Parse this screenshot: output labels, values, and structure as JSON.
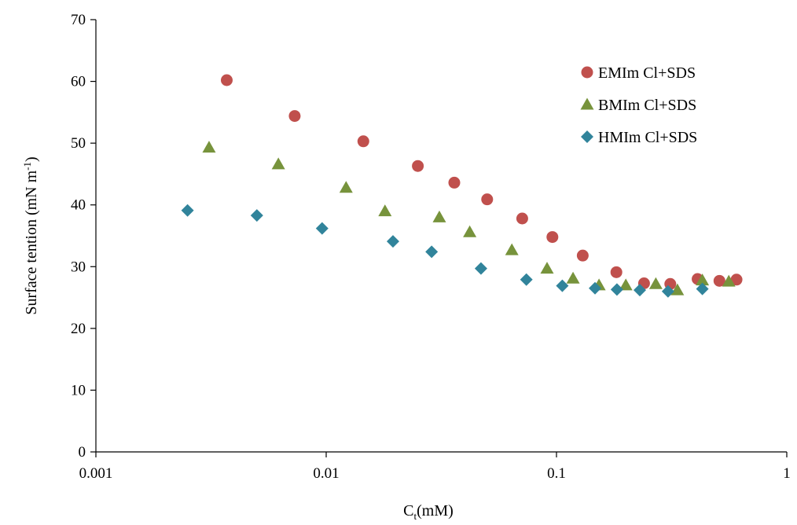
{
  "chart_data": {
    "type": "scatter",
    "title": "",
    "xlabel": "(mM)",
    "xlabel_prefix": "C",
    "xlabel_subscript": "t",
    "ylabel": "Surface tention (mN m",
    "ylabel_superscript": "-1",
    "ylabel_suffix": ")",
    "xscale": "log",
    "xlim": [
      0.001,
      1
    ],
    "ylim": [
      0,
      70
    ],
    "xticks": [
      0.001,
      0.01,
      0.1,
      1
    ],
    "xtick_labels": [
      "0.001",
      "0.01",
      "0.1",
      "1"
    ],
    "yticks": [
      0,
      10,
      20,
      30,
      40,
      50,
      60,
      70
    ],
    "ytick_labels": [
      "0",
      "10",
      "20",
      "30",
      "40",
      "50",
      "60",
      "70"
    ],
    "grid": false,
    "legend_position": "top-right",
    "series": [
      {
        "name": "EMIm Cl+SDS",
        "marker": "circle",
        "color": "#c0504d",
        "x": [
          0.0037,
          0.0073,
          0.0145,
          0.025,
          0.036,
          0.05,
          0.071,
          0.096,
          0.13,
          0.182,
          0.24,
          0.312,
          0.41,
          0.51,
          0.605
        ],
        "y": [
          60.2,
          54.4,
          50.3,
          46.3,
          43.6,
          40.9,
          37.8,
          34.8,
          31.8,
          29.1,
          27.3,
          27.2,
          28.0,
          27.7,
          27.9
        ]
      },
      {
        "name": "BMIm Cl+SDS",
        "marker": "triangle",
        "color": "#77933c",
        "x": [
          0.0031,
          0.0062,
          0.0122,
          0.018,
          0.031,
          0.042,
          0.064,
          0.091,
          0.118,
          0.153,
          0.2,
          0.27,
          0.335,
          0.43,
          0.56
        ],
        "y": [
          49.3,
          46.6,
          42.8,
          39.0,
          38.0,
          35.6,
          32.7,
          29.7,
          28.1,
          27.0,
          27.0,
          27.2,
          26.2,
          27.8,
          27.6
        ]
      },
      {
        "name": "HMIm Cl+SDS",
        "marker": "diamond",
        "color": "#31849b",
        "x": [
          0.0025,
          0.005,
          0.0096,
          0.0195,
          0.0287,
          0.047,
          0.074,
          0.106,
          0.147,
          0.183,
          0.23,
          0.305,
          0.43
        ],
        "y": [
          39.1,
          38.3,
          36.2,
          34.1,
          32.4,
          29.7,
          27.9,
          26.9,
          26.5,
          26.3,
          26.2,
          26.0,
          26.4
        ]
      }
    ]
  }
}
